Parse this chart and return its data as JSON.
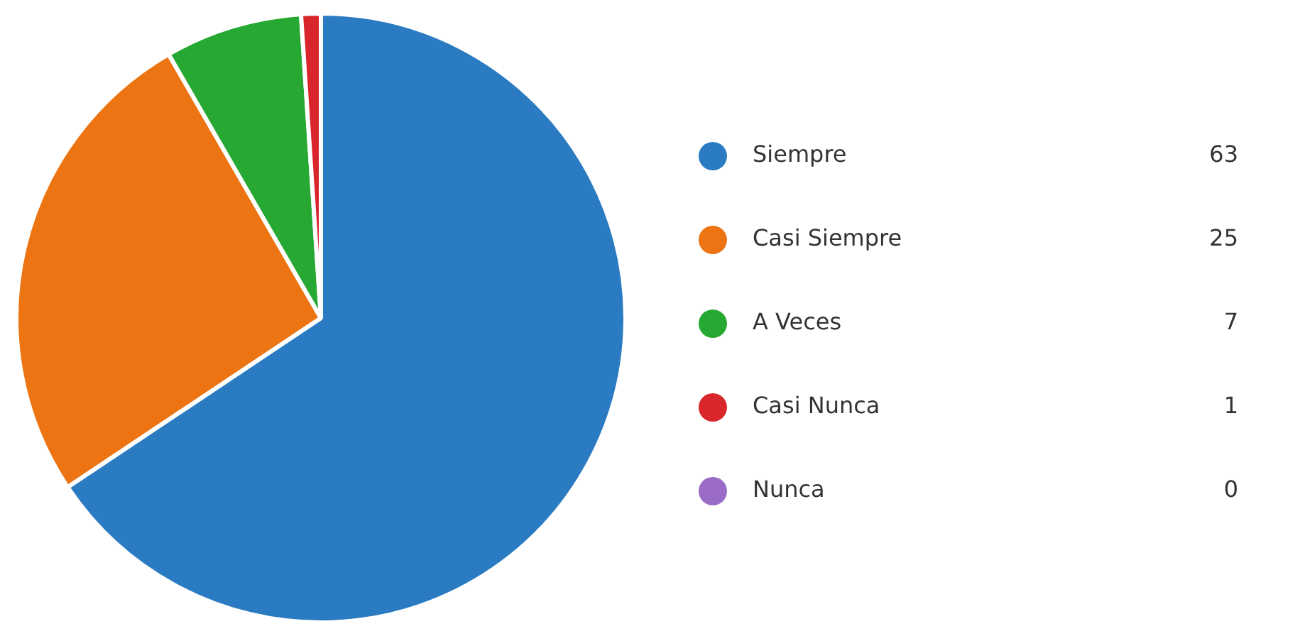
{
  "chart_data": {
    "type": "pie",
    "categories": [
      "Siempre",
      "Casi Siempre",
      "A Veces",
      "Casi Nunca",
      "Nunca"
    ],
    "values": [
      63,
      25,
      7,
      1,
      0
    ],
    "value_labels": [
      "63",
      "25",
      "7",
      "1",
      "0"
    ],
    "colors": [
      "#2a7bc1",
      "#ec7412",
      "#27a833",
      "#d8262c",
      "#9a6bc7"
    ],
    "legend": "right"
  }
}
